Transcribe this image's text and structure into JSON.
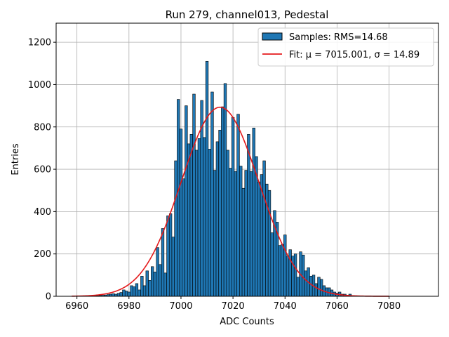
{
  "chart_data": {
    "type": "bar",
    "title": "Run 279, channel013, Pedestal",
    "xlabel": "ADC Counts",
    "ylabel": "Entries",
    "xlim": [
      6952,
      7099
    ],
    "ylim": [
      0,
      1290
    ],
    "xticks": [
      6960,
      6980,
      7000,
      7020,
      7040,
      7060,
      7080
    ],
    "yticks": [
      0,
      200,
      400,
      600,
      800,
      1000,
      1200
    ],
    "grid": true,
    "legend_position": "top-right",
    "colors": {
      "bar_fill": "#1f77b4",
      "bar_edge": "#000000",
      "fit_line": "#e41a1c",
      "grid": "#b0b0b0"
    },
    "series": [
      {
        "name": "Samples: RMS=14.68",
        "kind": "histogram",
        "bin_width": 1,
        "x": [
          6964,
          6965,
          6966,
          6967,
          6968,
          6969,
          6970,
          6971,
          6972,
          6973,
          6974,
          6975,
          6976,
          6977,
          6978,
          6979,
          6980,
          6981,
          6982,
          6983,
          6984,
          6985,
          6986,
          6987,
          6988,
          6989,
          6990,
          6991,
          6992,
          6993,
          6994,
          6995,
          6996,
          6997,
          6998,
          6999,
          7000,
          7001,
          7002,
          7003,
          7004,
          7005,
          7006,
          7007,
          7008,
          7009,
          7010,
          7011,
          7012,
          7013,
          7014,
          7015,
          7016,
          7017,
          7018,
          7019,
          7020,
          7021,
          7022,
          7023,
          7024,
          7025,
          7026,
          7027,
          7028,
          7029,
          7030,
          7031,
          7032,
          7033,
          7034,
          7035,
          7036,
          7037,
          7038,
          7039,
          7040,
          7041,
          7042,
          7043,
          7044,
          7045,
          7046,
          7047,
          7048,
          7049,
          7050,
          7051,
          7052,
          7053,
          7054,
          7055,
          7056,
          7057,
          7058,
          7059,
          7060,
          7061,
          7062,
          7063,
          7064,
          7065
        ],
        "values": [
          1,
          1,
          2,
          2,
          3,
          4,
          5,
          6,
          8,
          10,
          12,
          10,
          14,
          18,
          30,
          25,
          20,
          50,
          45,
          60,
          30,
          95,
          50,
          120,
          75,
          140,
          115,
          230,
          150,
          320,
          110,
          380,
          390,
          280,
          640,
          930,
          790,
          555,
          900,
          720,
          765,
          955,
          690,
          745,
          925,
          750,
          1110,
          695,
          965,
          595,
          730,
          785,
          895,
          1005,
          690,
          605,
          845,
          590,
          860,
          615,
          510,
          595,
          765,
          590,
          795,
          660,
          540,
          575,
          640,
          530,
          500,
          300,
          405,
          350,
          240,
          245,
          290,
          190,
          220,
          190,
          200,
          90,
          210,
          195,
          120,
          135,
          95,
          100,
          60,
          90,
          80,
          50,
          40,
          40,
          30,
          20,
          15,
          20,
          10,
          10,
          5,
          10
        ]
      },
      {
        "name": "Fit: μ = 7015.001, σ = 14.89",
        "kind": "gaussian_fit",
        "mu": 7015.001,
        "sigma": 14.89,
        "amplitude": 893,
        "x_range": [
          6958,
          7080
        ]
      }
    ]
  }
}
